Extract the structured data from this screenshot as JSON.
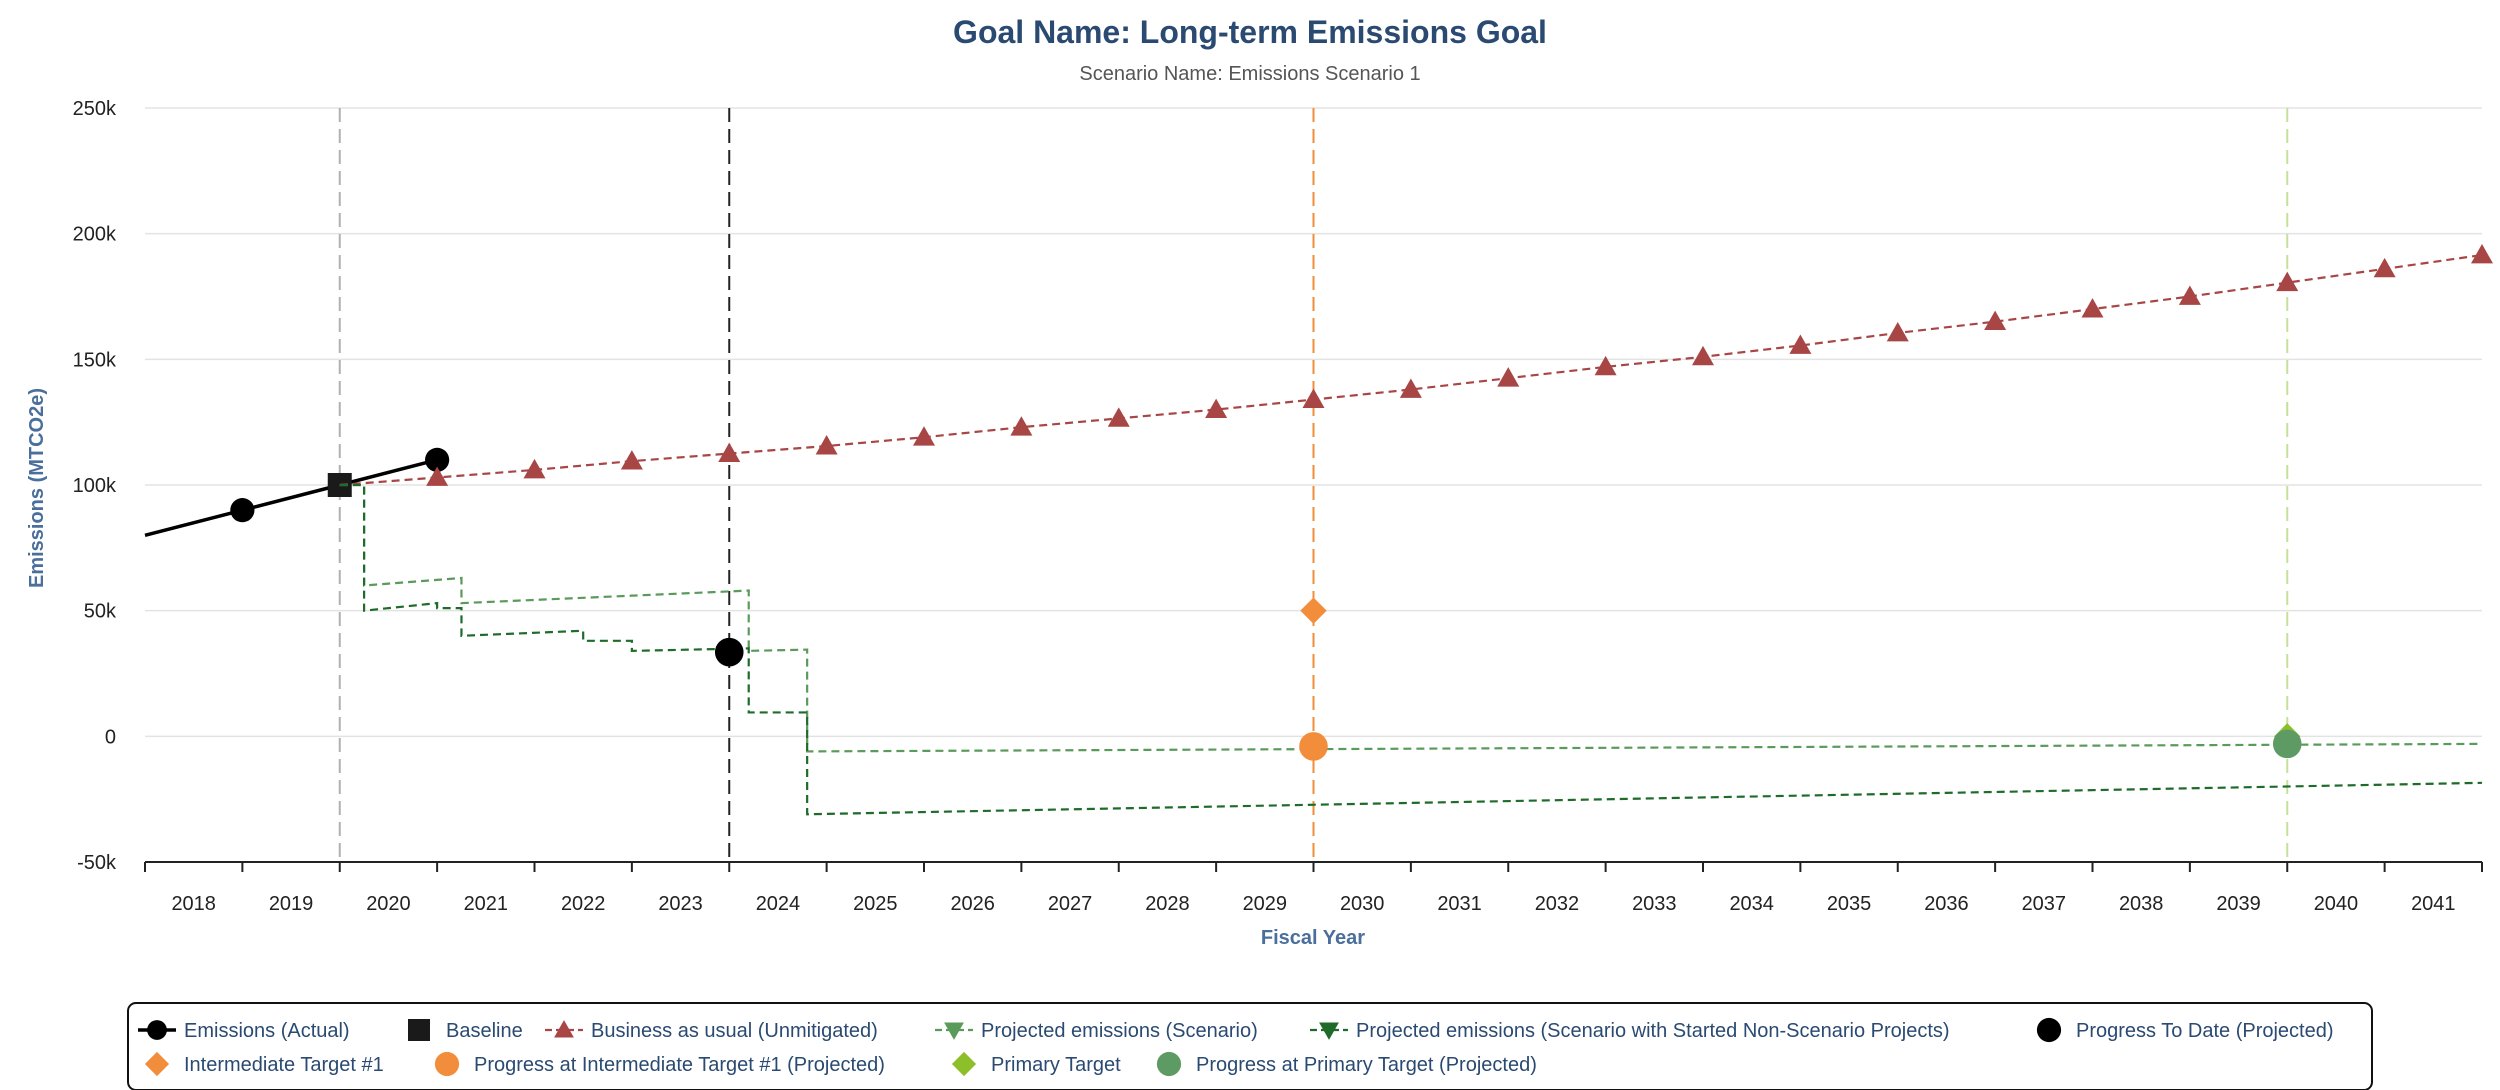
{
  "chart_data": {
    "type": "line",
    "title": "Goal Name: Long-term Emissions Goal",
    "subtitle": "Scenario Name: Emissions Scenario 1",
    "xlabel": "Fiscal Year",
    "ylabel": "Emissions (MTCO2e)",
    "xlim": [
      2017.5,
      2041.5
    ],
    "ylim": [
      -50000,
      250000
    ],
    "x_ticks": [
      2018,
      2019,
      2020,
      2021,
      2022,
      2023,
      2024,
      2025,
      2026,
      2027,
      2028,
      2029,
      2030,
      2031,
      2032,
      2033,
      2034,
      2035,
      2036,
      2037,
      2038,
      2039,
      2040,
      2041
    ],
    "y_ticks": [
      {
        "value": -50000,
        "label": "-50k"
      },
      {
        "value": 0,
        "label": "0"
      },
      {
        "value": 50000,
        "label": "50k"
      },
      {
        "value": 100000,
        "label": "100k"
      },
      {
        "value": 150000,
        "label": "150k"
      },
      {
        "value": 200000,
        "label": "200k"
      },
      {
        "value": 250000,
        "label": "250k"
      }
    ],
    "grid": true,
    "legend_position": "bottom",
    "vertical_lines": [
      {
        "x": 2019.5,
        "color": "#b0b0b0"
      },
      {
        "x": 2023.5,
        "color": "#222222"
      },
      {
        "x": 2029.5,
        "color": "#f28e3b"
      },
      {
        "x": 2039.5,
        "color": "#c5e09a"
      }
    ],
    "series": [
      {
        "name": "Emissions (Actual)",
        "kind": "line",
        "color": "#000000",
        "marker": "circle",
        "points": [
          [
            2017.5,
            80000
          ],
          [
            2018.5,
            90000
          ],
          [
            2019.5,
            100000
          ],
          [
            2020.5,
            110000
          ]
        ],
        "marker_points": [
          [
            2018.5,
            90000
          ],
          [
            2020.5,
            110000
          ]
        ]
      },
      {
        "name": "Baseline",
        "kind": "marker",
        "color": "#1a1a1a",
        "marker": "square",
        "points": [
          [
            2019.5,
            100000
          ]
        ]
      },
      {
        "name": "Business as usual (Unmitigated)",
        "kind": "line",
        "color": "#a84646",
        "marker": "triangle-up",
        "dashed": true,
        "points": [
          [
            2019.5,
            100000
          ],
          [
            2020.5,
            103000
          ],
          [
            2021.5,
            106000
          ],
          [
            2022.5,
            109500
          ],
          [
            2023.5,
            112500
          ],
          [
            2024.5,
            115500
          ],
          [
            2025.5,
            119000
          ],
          [
            2026.5,
            123000
          ],
          [
            2027.5,
            126500
          ],
          [
            2028.5,
            130000
          ],
          [
            2029.5,
            134000
          ],
          [
            2030.5,
            138000
          ],
          [
            2031.5,
            142500
          ],
          [
            2032.5,
            147000
          ],
          [
            2033.5,
            151000
          ],
          [
            2034.5,
            155500
          ],
          [
            2035.5,
            160500
          ],
          [
            2036.5,
            165000
          ],
          [
            2037.5,
            170000
          ],
          [
            2038.5,
            175000
          ],
          [
            2039.5,
            180500
          ],
          [
            2040.5,
            186000
          ],
          [
            2041.5,
            191500
          ]
        ],
        "marker_points": [
          [
            2020.5,
            103000
          ],
          [
            2021.5,
            106000
          ],
          [
            2022.5,
            109500
          ],
          [
            2023.5,
            112500
          ],
          [
            2024.5,
            115500
          ],
          [
            2025.5,
            119000
          ],
          [
            2026.5,
            123000
          ],
          [
            2027.5,
            126500
          ],
          [
            2028.5,
            130000
          ],
          [
            2029.5,
            134000
          ],
          [
            2030.5,
            138000
          ],
          [
            2031.5,
            142500
          ],
          [
            2032.5,
            147000
          ],
          [
            2033.5,
            151000
          ],
          [
            2034.5,
            155500
          ],
          [
            2035.5,
            160500
          ],
          [
            2036.5,
            165000
          ],
          [
            2037.5,
            170000
          ],
          [
            2038.5,
            175000
          ],
          [
            2039.5,
            180500
          ],
          [
            2040.5,
            186000
          ],
          [
            2041.5,
            191500
          ]
        ]
      },
      {
        "name": "Projected emissions (Scenario)",
        "kind": "line",
        "color": "#5a9a5a",
        "marker": "triangle-down",
        "dashed": true,
        "points": [
          [
            2019.5,
            100000
          ],
          [
            2019.75,
            100000
          ],
          [
            2019.75,
            60000
          ],
          [
            2020.75,
            63000
          ],
          [
            2020.75,
            53000
          ],
          [
            2023.7,
            58000
          ],
          [
            2023.7,
            34000
          ],
          [
            2024.3,
            34500
          ],
          [
            2024.3,
            -6000
          ],
          [
            2041.5,
            -3000
          ]
        ]
      },
      {
        "name": "Projected emissions (Scenario with Started Non-Scenario Projects)",
        "kind": "line",
        "color": "#1f6b2a",
        "marker": "triangle-down",
        "dashed": true,
        "points": [
          [
            2019.5,
            100000
          ],
          [
            2019.75,
            100000
          ],
          [
            2019.75,
            50000
          ],
          [
            2020.5,
            53000
          ],
          [
            2020.5,
            51000
          ],
          [
            2020.75,
            51000
          ],
          [
            2020.75,
            40000
          ],
          [
            2022.0,
            42000
          ],
          [
            2022.0,
            38000
          ],
          [
            2022.5,
            38000
          ],
          [
            2022.5,
            34000
          ],
          [
            2023.7,
            35000
          ],
          [
            2023.7,
            9500
          ],
          [
            2024.3,
            9500
          ],
          [
            2024.3,
            -31000
          ],
          [
            2041.5,
            -18500
          ]
        ]
      },
      {
        "name": "Progress To Date (Projected)",
        "kind": "marker",
        "color": "#000000",
        "marker": "circle",
        "points": [
          [
            2023.5,
            33500
          ]
        ]
      },
      {
        "name": "Intermediate Target #1",
        "kind": "marker",
        "color": "#f28e3b",
        "marker": "diamond",
        "points": [
          [
            2029.5,
            50000
          ]
        ]
      },
      {
        "name": "Progress at Intermediate Target #1 (Projected)",
        "kind": "marker",
        "color": "#f28e3b",
        "marker": "circle",
        "points": [
          [
            2029.5,
            -4000
          ]
        ]
      },
      {
        "name": "Primary Target",
        "kind": "marker",
        "color": "#8cbf2a",
        "marker": "diamond",
        "points": [
          [
            2039.5,
            0
          ]
        ]
      },
      {
        "name": "Progress at Primary Target (Projected)",
        "kind": "marker",
        "color": "#5e9a63",
        "marker": "circle",
        "points": [
          [
            2039.5,
            -3000
          ]
        ]
      }
    ]
  }
}
